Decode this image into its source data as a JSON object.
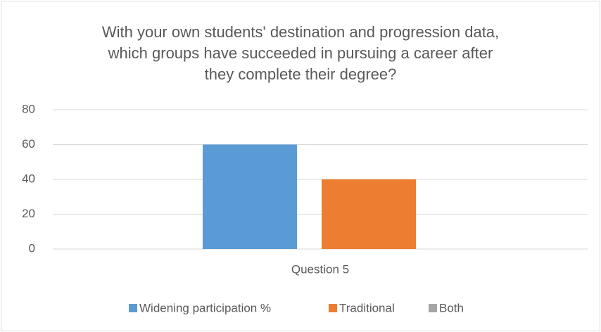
{
  "chart_data": {
    "type": "bar",
    "title": [
      "With your own students' destination and progression data,",
      "which groups have succeeded in pursuing a career after",
      "they complete their degree?"
    ],
    "categories": [
      "Question 5"
    ],
    "series": [
      {
        "name": "Widening participation %",
        "color": "#5b9bd5",
        "values": [
          60
        ]
      },
      {
        "name": "Traditional",
        "color": "#ed7d31",
        "values": [
          40
        ]
      },
      {
        "name": "Both",
        "color": "#a5a5a5",
        "values": [
          0
        ]
      }
    ],
    "ylim": [
      0,
      80
    ],
    "yticks": [
      0,
      20,
      40,
      60,
      80
    ],
    "grid": true,
    "legend": "bottom"
  }
}
